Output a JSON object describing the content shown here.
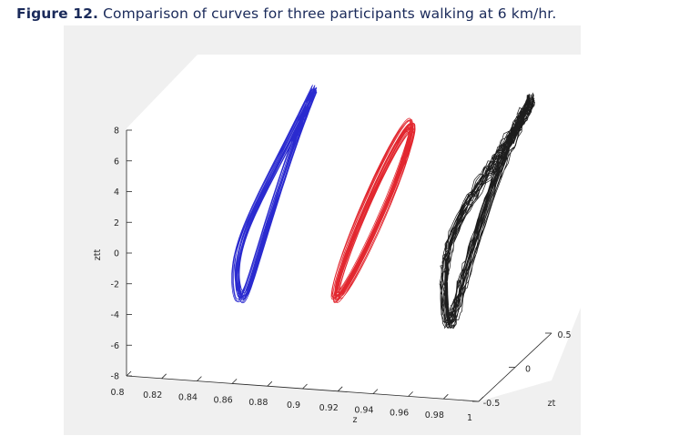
{
  "caption": {
    "label": "Figure 12.",
    "text": "Comparison of curves for three participants walking at 6 km/hr."
  },
  "chart_data": {
    "type": "line",
    "projection": "3d",
    "xlabel": "z",
    "ylabel": "zt",
    "zlabel": "ztt",
    "xlim": [
      0.8,
      1.0
    ],
    "ylim": [
      -0.5,
      0.5
    ],
    "zlim": [
      -8,
      8
    ],
    "xticks": [
      "0.8",
      "0.82",
      "0.84",
      "0.86",
      "0.88",
      "0.9",
      "0.92",
      "0.94",
      "0.96",
      "0.98",
      "1"
    ],
    "yticks": [
      "-0.5",
      "0",
      "0.5"
    ],
    "zticks": [
      "-8",
      "-6",
      "-4",
      "-2",
      "0",
      "2",
      "4",
      "6",
      "8"
    ],
    "grid": false,
    "legend": "none",
    "series": [
      {
        "color": "#1f1fcc",
        "shape": "double-lobed loops",
        "z_center": 0.86,
        "z_amp": 0.018,
        "zt_amp": 0.3,
        "ztt_center": 1.5,
        "ztt_amp": 5.8,
        "cycles": 18
      },
      {
        "color": "#e01b24",
        "shape": "single elliptical loop",
        "z_center": 0.92,
        "z_amp": 0.018,
        "zt_amp": 0.3,
        "ztt_center": 1.5,
        "ztt_amp": 4.8,
        "cycles": 22
      },
      {
        "color": "#111111",
        "shape": "irregular loops",
        "z_center": 0.98,
        "z_amp": 0.02,
        "zt_amp": 0.32,
        "ztt_center": 1.8,
        "ztt_amp": 6.0,
        "cycles": 22
      }
    ]
  }
}
